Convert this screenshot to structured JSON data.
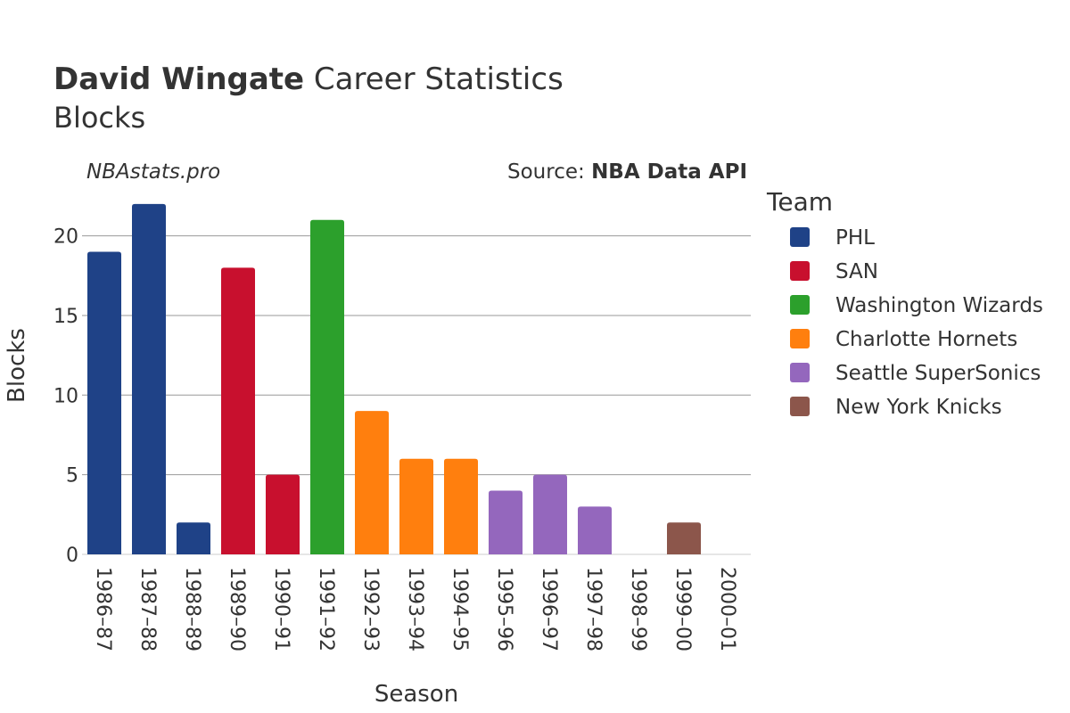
{
  "header": {
    "title_bold": "David Wingate",
    "title_rest": " Career Statistics",
    "subtitle": "Blocks",
    "brand": "NBAstats.pro",
    "source_label": "Source: ",
    "source_name": "NBA Data API"
  },
  "legend": {
    "title": "Team",
    "placement": "right"
  },
  "colors": {
    "PHL": "#1f4287",
    "SAN": "#c8102e",
    "Washington Wizards": "#2ca02c",
    "Charlotte Hornets": "#ff7f0e",
    "Seattle SuperSonics": "#9467bd",
    "New York Knicks": "#8c564b"
  },
  "chart_data": {
    "type": "bar",
    "title": "David Wingate Career Statistics",
    "subtitle": "Blocks",
    "xlabel": "Season",
    "ylabel": "Blocks",
    "ylim": [
      0,
      23
    ],
    "yticks": [
      0,
      5,
      10,
      15,
      20
    ],
    "grid": true,
    "categories": [
      "1986–87",
      "1987–88",
      "1988–89",
      "1989–90",
      "1990–91",
      "1991–92",
      "1992–93",
      "1993–94",
      "1994–95",
      "1995–96",
      "1996–97",
      "1997–98",
      "1998–99",
      "1999–00",
      "2000–01"
    ],
    "series": [
      {
        "name": "PHL",
        "values": [
          19,
          22,
          2,
          null,
          null,
          null,
          null,
          null,
          null,
          null,
          null,
          null,
          null,
          null,
          null
        ]
      },
      {
        "name": "SAN",
        "values": [
          null,
          null,
          null,
          18,
          5,
          null,
          null,
          null,
          null,
          null,
          null,
          null,
          null,
          null,
          null
        ]
      },
      {
        "name": "Washington Wizards",
        "values": [
          null,
          null,
          null,
          null,
          null,
          21,
          null,
          null,
          null,
          null,
          null,
          null,
          null,
          null,
          null
        ]
      },
      {
        "name": "Charlotte Hornets",
        "values": [
          null,
          null,
          null,
          null,
          null,
          null,
          9,
          6,
          6,
          null,
          null,
          null,
          null,
          null,
          null
        ]
      },
      {
        "name": "Seattle SuperSonics",
        "values": [
          null,
          null,
          null,
          null,
          null,
          null,
          null,
          null,
          null,
          4,
          5,
          3,
          0,
          null,
          null
        ]
      },
      {
        "name": "New York Knicks",
        "values": [
          null,
          null,
          null,
          null,
          null,
          null,
          null,
          null,
          null,
          null,
          null,
          null,
          null,
          2,
          0
        ]
      }
    ]
  }
}
